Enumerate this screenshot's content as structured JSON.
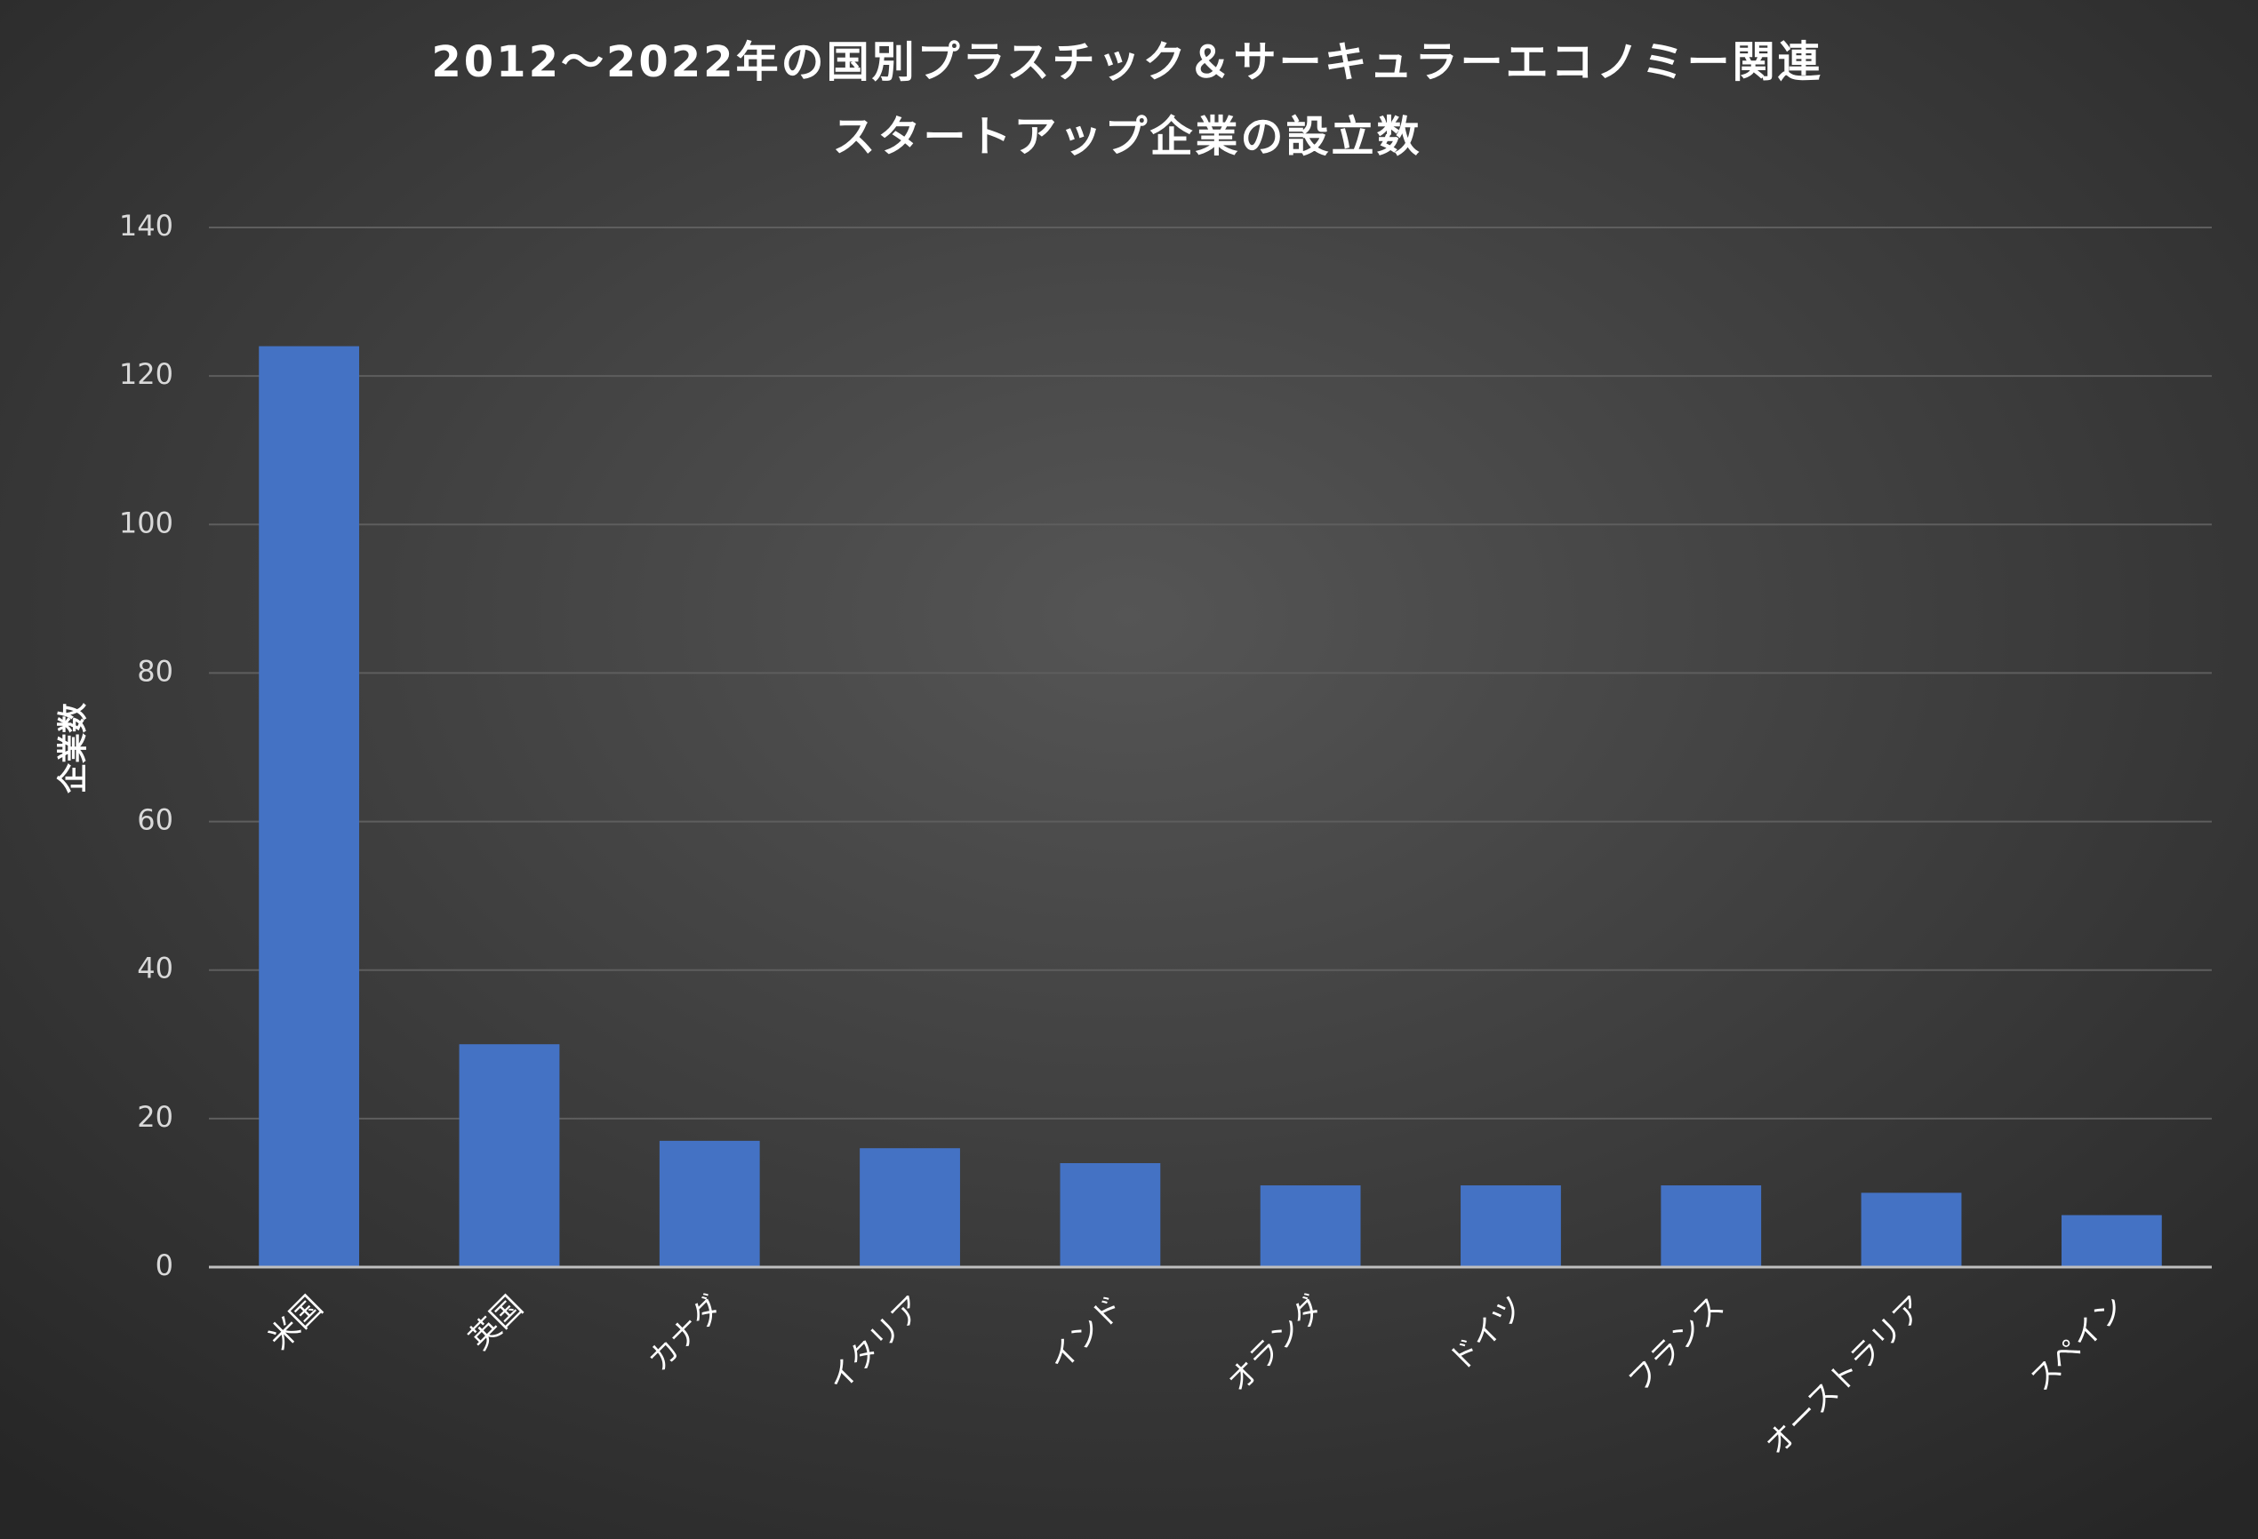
{
  "chart_data": {
    "type": "bar",
    "title": [
      "2012～2022年の国別プラスチック＆サーキュラーエコノミー関連",
      "スタートアップ企業の設立数"
    ],
    "y_label": "企業数",
    "categories": [
      "米国",
      "英国",
      "カナダ",
      "イタリア",
      "インド",
      "オランダ",
      "ドイツ",
      "フランス",
      "オーストラリア",
      "スペイン"
    ],
    "values": [
      124,
      30,
      17,
      16,
      14,
      11,
      11,
      11,
      10,
      7
    ],
    "color": "#4472c4",
    "ylim": [
      0,
      140
    ],
    "yticks": [
      0,
      20,
      40,
      60,
      80,
      100,
      120,
      140
    ],
    "grid": true
  }
}
